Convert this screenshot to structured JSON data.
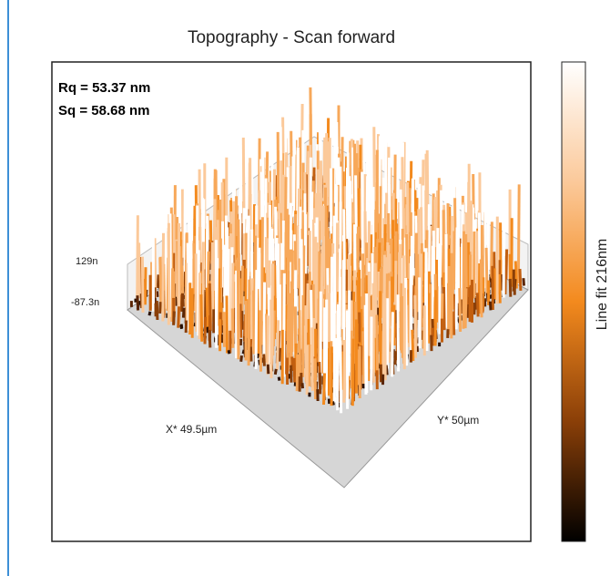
{
  "title": "Topography - Scan forward",
  "stats": [
    "Rq = 53.37 nm",
    "Sq = 58.68 nm"
  ],
  "z_axis": {
    "labels": [
      "129n",
      "-87.3n"
    ]
  },
  "x_axis_label": "X* 49.5µm",
  "y_axis_label": "Y* 50µm",
  "colorbar_label": "Line fit 216nm"
}
